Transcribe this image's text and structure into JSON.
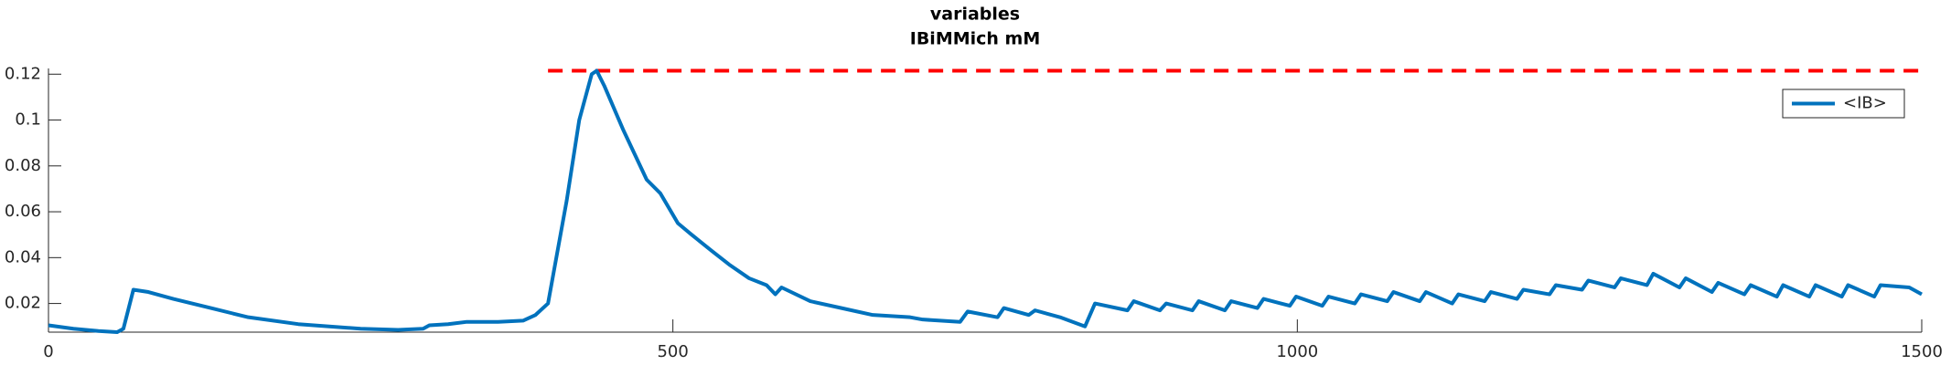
{
  "chart_data": {
    "type": "line",
    "title": "variables",
    "subtitle": "IBiMMich mM",
    "series": [
      {
        "name": "<IB>",
        "color": "#0072bd",
        "x": [
          0,
          20,
          40,
          55,
          60,
          68,
          80,
          100,
          130,
          160,
          200,
          250,
          280,
          300,
          305,
          320,
          335,
          360,
          380,
          390,
          400,
          403,
          415,
          425,
          435,
          439,
          445,
          460,
          479,
          490,
          504,
          515,
          531,
          545,
          561,
          575,
          582,
          587,
          610,
          635,
          660,
          690,
          700,
          730,
          736,
          760,
          765,
          785,
          790,
          810,
          830,
          838,
          864,
          869,
          890,
          895,
          916,
          921,
          942,
          947,
          968,
          973,
          994,
          999,
          1020,
          1025,
          1046,
          1051,
          1072,
          1077,
          1098,
          1103,
          1124,
          1129,
          1150,
          1155,
          1176,
          1181,
          1202,
          1207,
          1228,
          1233,
          1254,
          1259,
          1280,
          1285,
          1306,
          1311,
          1332,
          1337,
          1358,
          1363,
          1384,
          1389,
          1410,
          1415,
          1436,
          1441,
          1462,
          1467,
          1490,
          1500
        ],
        "values": [
          0.0105,
          0.009,
          0.008,
          0.0075,
          0.009,
          0.026,
          0.025,
          0.022,
          0.018,
          0.014,
          0.011,
          0.009,
          0.0085,
          0.009,
          0.0105,
          0.011,
          0.012,
          0.012,
          0.0125,
          0.015,
          0.02,
          0.029,
          0.065,
          0.1,
          0.12,
          0.1215,
          0.115,
          0.096,
          0.074,
          0.068,
          0.055,
          0.05,
          0.043,
          0.037,
          0.031,
          0.028,
          0.024,
          0.027,
          0.021,
          0.018,
          0.015,
          0.014,
          0.013,
          0.012,
          0.0165,
          0.014,
          0.018,
          0.015,
          0.017,
          0.014,
          0.01,
          0.02,
          0.017,
          0.021,
          0.017,
          0.02,
          0.017,
          0.021,
          0.017,
          0.021,
          0.018,
          0.022,
          0.019,
          0.023,
          0.019,
          0.023,
          0.02,
          0.024,
          0.021,
          0.025,
          0.021,
          0.025,
          0.02,
          0.024,
          0.021,
          0.025,
          0.022,
          0.026,
          0.024,
          0.028,
          0.026,
          0.03,
          0.027,
          0.031,
          0.028,
          0.033,
          0.027,
          0.031,
          0.025,
          0.029,
          0.024,
          0.028,
          0.023,
          0.028,
          0.023,
          0.028,
          0.023,
          0.028,
          0.023,
          0.028,
          0.027,
          0.024
        ]
      }
    ],
    "reference_line": {
      "x": [
        400,
        1500
      ],
      "values": [
        0.1215,
        0.1215
      ],
      "color": "#ff0000"
    },
    "xlim": [
      0,
      1500
    ],
    "xticks": [
      0,
      500,
      1000,
      1500
    ],
    "ylim": [
      0.0075,
      0.1225
    ],
    "yticks": [
      0.02,
      0.04,
      0.06,
      0.08,
      0.1,
      0.12
    ],
    "legend": "top-right",
    "grid": false
  }
}
